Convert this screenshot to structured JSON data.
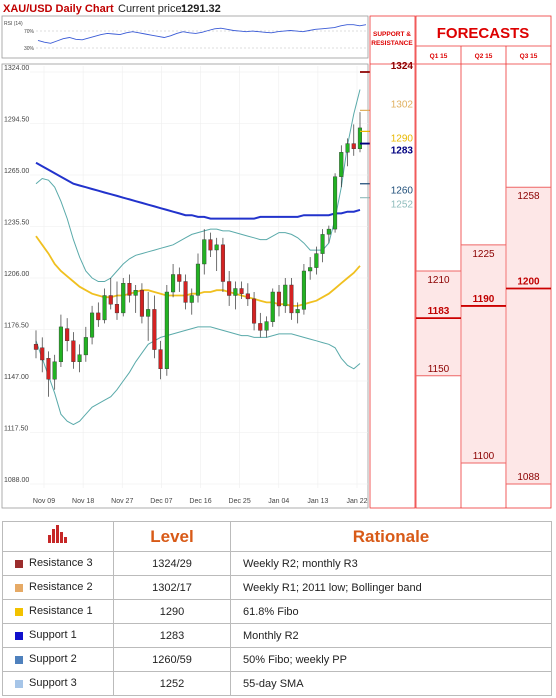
{
  "header": {
    "title": "XAU/USD Daily Chart",
    "price_label": "Current price:",
    "price_value": "1291.32"
  },
  "colors": {
    "bullish": "#22b222",
    "bearish": "#d42222",
    "sma_long": "#2233cc",
    "sma_short": "#f0c020",
    "bollinger": "#5aaaaa",
    "forecast_red": "#d00000"
  },
  "chart_data": {
    "type": "candlestick",
    "title": "XAU/USD Daily Chart",
    "current_price": 1291.32,
    "ylim": [
      1088,
      1324
    ],
    "y_ticks": [
      "1324.00",
      "1294.50",
      "1265.00",
      "1235.50",
      "1206.00",
      "1176.50",
      "1147.00",
      "1117.50",
      "1088.00"
    ],
    "x_ticks": [
      "Nov 09",
      "Nov 18",
      "Nov 27",
      "Dec 07",
      "Dec 16",
      "Dec 25",
      "Jan 04",
      "Jan 13",
      "Jan 22"
    ],
    "candles": [
      {
        "o": 1168,
        "h": 1176,
        "l": 1160,
        "c": 1165
      },
      {
        "o": 1166,
        "h": 1172,
        "l": 1152,
        "c": 1159
      },
      {
        "o": 1160,
        "h": 1164,
        "l": 1138,
        "c": 1148
      },
      {
        "o": 1148,
        "h": 1162,
        "l": 1142,
        "c": 1158
      },
      {
        "o": 1158,
        "h": 1185,
        "l": 1155,
        "c": 1178
      },
      {
        "o": 1177,
        "h": 1183,
        "l": 1164,
        "c": 1170
      },
      {
        "o": 1170,
        "h": 1175,
        "l": 1154,
        "c": 1158
      },
      {
        "o": 1158,
        "h": 1168,
        "l": 1152,
        "c": 1162
      },
      {
        "o": 1162,
        "h": 1178,
        "l": 1158,
        "c": 1172
      },
      {
        "o": 1172,
        "h": 1190,
        "l": 1168,
        "c": 1186
      },
      {
        "o": 1186,
        "h": 1192,
        "l": 1178,
        "c": 1182
      },
      {
        "o": 1182,
        "h": 1200,
        "l": 1180,
        "c": 1196
      },
      {
        "o": 1196,
        "h": 1206,
        "l": 1188,
        "c": 1191
      },
      {
        "o": 1191,
        "h": 1204,
        "l": 1182,
        "c": 1186
      },
      {
        "o": 1186,
        "h": 1206,
        "l": 1184,
        "c": 1203
      },
      {
        "o": 1203,
        "h": 1208,
        "l": 1192,
        "c": 1196
      },
      {
        "o": 1196,
        "h": 1202,
        "l": 1186,
        "c": 1199
      },
      {
        "o": 1199,
        "h": 1203,
        "l": 1180,
        "c": 1184
      },
      {
        "o": 1184,
        "h": 1198,
        "l": 1170,
        "c": 1188
      },
      {
        "o": 1188,
        "h": 1196,
        "l": 1160,
        "c": 1165
      },
      {
        "o": 1165,
        "h": 1170,
        "l": 1148,
        "c": 1154
      },
      {
        "o": 1154,
        "h": 1202,
        "l": 1150,
        "c": 1198
      },
      {
        "o": 1198,
        "h": 1214,
        "l": 1195,
        "c": 1208
      },
      {
        "o": 1208,
        "h": 1212,
        "l": 1198,
        "c": 1204
      },
      {
        "o": 1204,
        "h": 1208,
        "l": 1188,
        "c": 1192
      },
      {
        "o": 1192,
        "h": 1200,
        "l": 1185,
        "c": 1196
      },
      {
        "o": 1196,
        "h": 1220,
        "l": 1192,
        "c": 1214
      },
      {
        "o": 1214,
        "h": 1234,
        "l": 1208,
        "c": 1228
      },
      {
        "o": 1228,
        "h": 1232,
        "l": 1218,
        "c": 1222
      },
      {
        "o": 1222,
        "h": 1229,
        "l": 1210,
        "c": 1225
      },
      {
        "o": 1225,
        "h": 1229,
        "l": 1198,
        "c": 1204
      },
      {
        "o": 1204,
        "h": 1210,
        "l": 1190,
        "c": 1196
      },
      {
        "o": 1196,
        "h": 1204,
        "l": 1188,
        "c": 1200
      },
      {
        "o": 1200,
        "h": 1204,
        "l": 1194,
        "c": 1197
      },
      {
        "o": 1197,
        "h": 1203,
        "l": 1190,
        "c": 1194
      },
      {
        "o": 1194,
        "h": 1198,
        "l": 1176,
        "c": 1180
      },
      {
        "o": 1180,
        "h": 1186,
        "l": 1172,
        "c": 1176
      },
      {
        "o": 1176,
        "h": 1184,
        "l": 1172,
        "c": 1181
      },
      {
        "o": 1181,
        "h": 1200,
        "l": 1178,
        "c": 1198
      },
      {
        "o": 1198,
        "h": 1202,
        "l": 1184,
        "c": 1190
      },
      {
        "o": 1190,
        "h": 1206,
        "l": 1186,
        "c": 1202
      },
      {
        "o": 1202,
        "h": 1206,
        "l": 1182,
        "c": 1186
      },
      {
        "o": 1186,
        "h": 1192,
        "l": 1180,
        "c": 1188
      },
      {
        "o": 1188,
        "h": 1214,
        "l": 1185,
        "c": 1210
      },
      {
        "o": 1210,
        "h": 1218,
        "l": 1205,
        "c": 1212
      },
      {
        "o": 1212,
        "h": 1224,
        "l": 1208,
        "c": 1220
      },
      {
        "o": 1220,
        "h": 1234,
        "l": 1215,
        "c": 1231
      },
      {
        "o": 1231,
        "h": 1236,
        "l": 1226,
        "c": 1234
      },
      {
        "o": 1234,
        "h": 1266,
        "l": 1232,
        "c": 1264
      },
      {
        "o": 1264,
        "h": 1282,
        "l": 1258,
        "c": 1278
      },
      {
        "o": 1278,
        "h": 1286,
        "l": 1270,
        "c": 1283
      },
      {
        "o": 1283,
        "h": 1294,
        "l": 1276,
        "c": 1280
      },
      {
        "o": 1280,
        "h": 1301,
        "l": 1278,
        "c": 1292
      }
    ],
    "series": [
      {
        "name": "",
        "role": "sma_long",
        "values": [
          1272,
          1270,
          1268,
          1266,
          1264,
          1262,
          1260,
          1259,
          1258,
          1257,
          1256,
          1255,
          1254,
          1253,
          1252,
          1251,
          1250,
          1249,
          1248,
          1247,
          1246,
          1245,
          1244,
          1243,
          1242,
          1242,
          1241,
          1241,
          1240,
          1240,
          1240,
          1240,
          1240,
          1240,
          1240,
          1240,
          1241,
          1241,
          1241,
          1241,
          1241,
          1241,
          1241,
          1242,
          1242,
          1242,
          1242,
          1242,
          1243,
          1243,
          1244,
          1244,
          1245
        ]
      },
      {
        "name": "",
        "role": "sma_short",
        "values": [
          1230,
          1225,
          1220,
          1214,
          1210,
          1207,
          1204,
          1201,
          1199,
          1197,
          1196,
          1195,
          1195,
          1196,
          1196,
          1197,
          1198,
          1199,
          1199,
          1198,
          1197,
          1196,
          1196,
          1196,
          1196,
          1197,
          1197,
          1198,
          1198,
          1199,
          1199,
          1198,
          1197,
          1196,
          1195,
          1194,
          1193,
          1192,
          1192,
          1191,
          1191,
          1190,
          1190,
          1191,
          1192,
          1193,
          1195,
          1197,
          1200,
          1203,
          1206,
          1209,
          1213
        ]
      },
      {
        "name": "",
        "role": "bb_upper",
        "values": [
          1260,
          1263,
          1262,
          1258,
          1250,
          1240,
          1228,
          1218,
          1210,
          1206,
          1204,
          1204,
          1206,
          1210,
          1214,
          1217,
          1219,
          1220,
          1221,
          1222,
          1223,
          1224,
          1225,
          1227,
          1229,
          1231,
          1232,
          1233,
          1234,
          1234,
          1233,
          1233,
          1232,
          1231,
          1230,
          1229,
          1228,
          1228,
          1230,
          1232,
          1232,
          1231,
          1229,
          1226,
          1222,
          1222,
          1222,
          1226,
          1240,
          1258,
          1282,
          1300,
          1314
        ]
      },
      {
        "name": "",
        "role": "bb_lower",
        "values": [
          1170,
          1160,
          1150,
          1140,
          1128,
          1124,
          1122,
          1124,
          1128,
          1132,
          1134,
          1136,
          1138,
          1142,
          1147,
          1152,
          1158,
          1163,
          1168,
          1170,
          1172,
          1173,
          1174,
          1175,
          1176,
          1177,
          1178,
          1178,
          1178,
          1177,
          1176,
          1175,
          1174,
          1173,
          1173,
          1172,
          1172,
          1172,
          1173,
          1174,
          1174,
          1174,
          1173,
          1172,
          1171,
          1170,
          1169,
          1168,
          1166,
          1160,
          1156,
          1154,
          1157
        ]
      }
    ],
    "rsi": {
      "label": "RSI (14)",
      "levels": [
        "70%",
        "30%"
      ],
      "values": [
        45,
        42,
        40,
        44,
        48,
        50,
        47,
        46,
        49,
        52,
        55,
        57,
        56,
        55,
        58,
        60,
        58,
        56,
        54,
        52,
        50,
        53,
        57,
        60,
        58,
        57,
        59,
        62,
        65,
        66,
        64,
        62,
        61,
        60,
        61,
        60,
        59,
        58,
        60,
        61,
        62,
        61,
        60,
        62,
        64,
        65,
        66,
        67,
        70,
        72,
        72,
        70,
        72
      ]
    },
    "support_resistance": {
      "heading": "SUPPORT & RESISTANCE",
      "levels": [
        {
          "value": 1324,
          "label": "1324",
          "color": "#8b0000",
          "bold": true
        },
        {
          "value": 1302,
          "label": "1302",
          "color": "#e0b060",
          "bold": false
        },
        {
          "value": 1290,
          "label": "1290",
          "color": "#e8b800",
          "bold": false
        },
        {
          "value": 1283,
          "label": "1283",
          "color": "#000080",
          "bold": true
        },
        {
          "value": 1260,
          "label": "1260",
          "color": "#1f4e79",
          "bold": false
        },
        {
          "value": 1252,
          "label": "1252",
          "color": "#8fbcbc",
          "bold": false
        }
      ]
    },
    "forecasts": {
      "title": "FORECASTS",
      "quarters": [
        {
          "name": "Q1 15",
          "high": 1210,
          "mid": 1183,
          "low": 1150
        },
        {
          "name": "Q2 15",
          "high": 1225,
          "mid": 1190,
          "low": 1100
        },
        {
          "name": "Q3 15",
          "high": 1258,
          "mid": 1200,
          "low": 1088
        }
      ]
    }
  },
  "table": {
    "headers": {
      "level": "Level",
      "rationale": "Rationale"
    },
    "icon": "bar-chart-icon",
    "rows": [
      {
        "name": "Resistance 3",
        "level": "1324/29",
        "rationale": "Weekly R2; monthly R3",
        "color": "#9b2d2d"
      },
      {
        "name": "Resistance 2",
        "level": "1302/17",
        "rationale": "Weekly R1; 2011 low; Bollinger band",
        "color": "#e6aa66"
      },
      {
        "name": "Resistance 1",
        "level": "1290",
        "rationale": "61.8% Fibo",
        "color": "#f2c200"
      },
      {
        "name": "Support 1",
        "level": "1283",
        "rationale": "Monthly R2",
        "color": "#1010cc"
      },
      {
        "name": "Support 2",
        "level": "1260/59",
        "rationale": "50% Fibo; weekly PP",
        "color": "#4f81bd"
      },
      {
        "name": "Support 3",
        "level": "1252",
        "rationale": "55-day SMA",
        "color": "#a6c5e8"
      }
    ]
  }
}
